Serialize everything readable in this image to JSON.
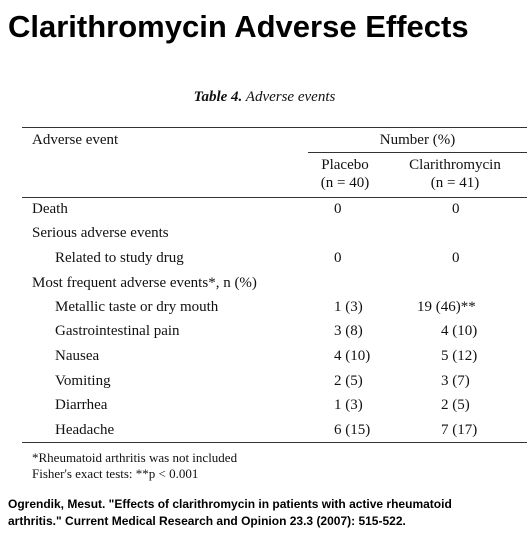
{
  "header": {
    "title": "Clarithromycin Adverse Effects"
  },
  "table": {
    "caption": {
      "label": "Table 4.",
      "text": "Adverse events"
    },
    "columns": {
      "event": "Adverse event",
      "group": "Number (%)",
      "placebo": {
        "name": "Placebo",
        "n": "(n = 40)"
      },
      "clarithromycin": {
        "name": "Clarithromycin",
        "n": "(n = 41)"
      }
    },
    "rows": [
      [
        "Death",
        "0",
        "0"
      ],
      [
        "Serious adverse events"
      ],
      [
        "Related to study drug",
        "0",
        "0"
      ],
      [
        "Most frequent adverse events*, n (%)"
      ],
      [
        "Metallic taste or dry mouth",
        "1 (3)",
        "19 (46)**"
      ],
      [
        "Gastrointestinal pain",
        "3 (8)",
        "4 (10)"
      ],
      [
        "Nausea",
        "4 (10)",
        "5 (12)"
      ],
      [
        "Vomiting",
        "2 (5)",
        "3 (7)"
      ],
      [
        "Diarrhea",
        "1 (3)",
        "2 (5)"
      ],
      [
        "Headache",
        "6 (15)",
        "7 (17)"
      ]
    ],
    "footnotes": [
      "*Rheumatoid arthritis was not included",
      "Fisher's exact tests: **p < 0.001"
    ]
  },
  "citation": [
    "Ogrendik, Mesut. \"Effects of clarithromycin in patients with active rheumatoid",
    "arthritis.\" Current Medical Research and Opinion 23.3 (2007): 515-522."
  ]
}
